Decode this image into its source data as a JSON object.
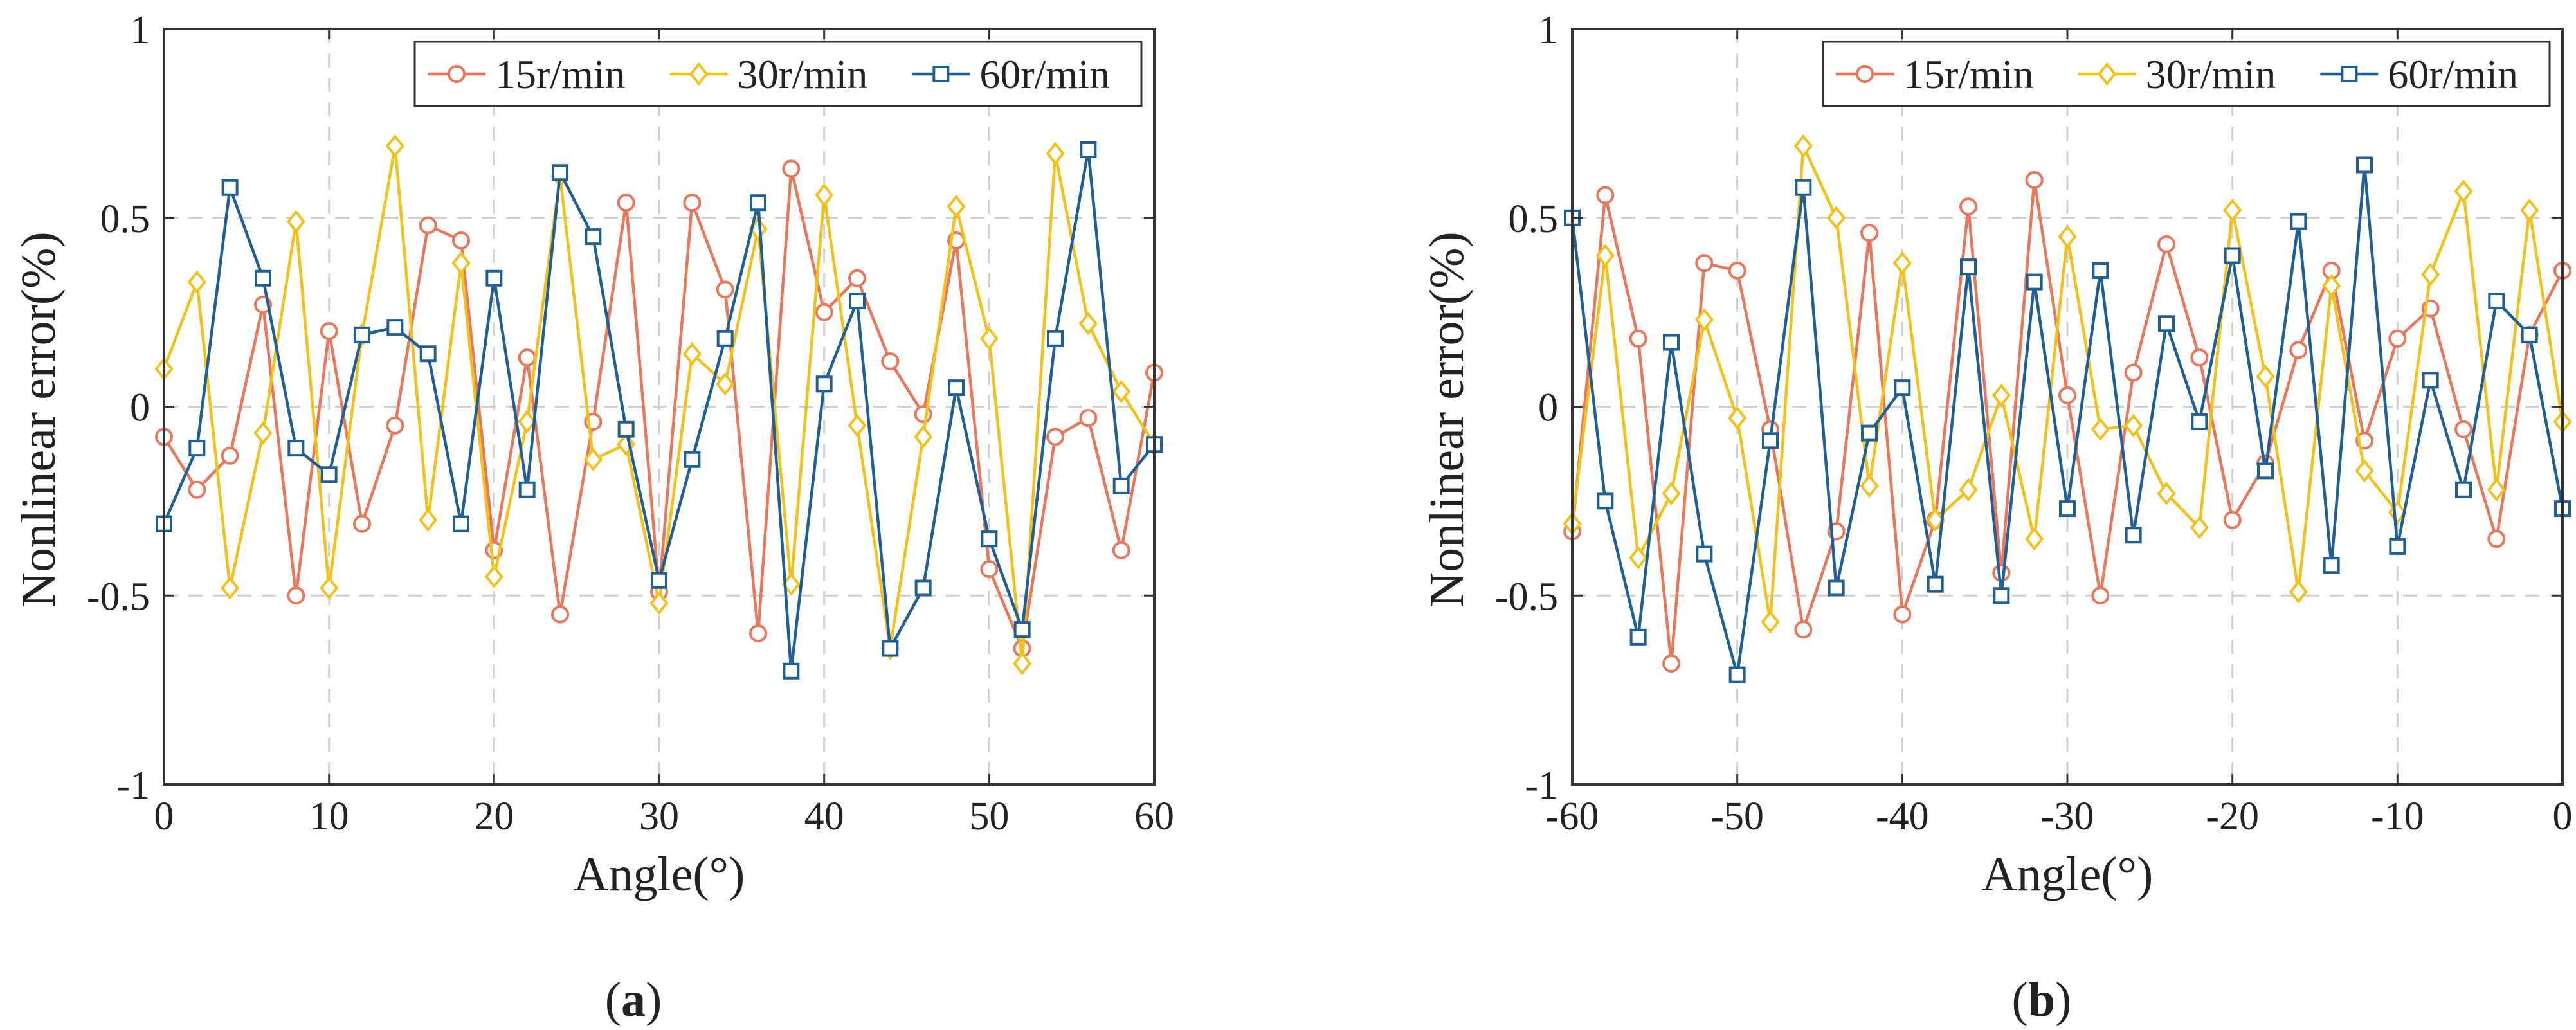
{
  "colors": {
    "s15": "#e8775b",
    "s30": "#f2c21a",
    "s60": "#1f5f96",
    "axis": "#333333",
    "grid": "#cfcfcf"
  },
  "chart_data": [
    {
      "type": "line",
      "panel_label": "(a)",
      "xlabel": "Angle(°)",
      "ylabel": "Nonlinear error(%)",
      "xlim": [
        0,
        60
      ],
      "ylim": [
        -1,
        1
      ],
      "xticks": [
        0,
        10,
        20,
        30,
        40,
        50,
        60
      ],
      "yticks": [
        -1,
        -0.5,
        0,
        0.5,
        1
      ],
      "ytick_labels": [
        "-1",
        "-0.5",
        "0",
        "0.5",
        "1"
      ],
      "grid": true,
      "legend_position": "top-right",
      "x": [
        0,
        2,
        4,
        6,
        8,
        10,
        12,
        14,
        16,
        18,
        20,
        22,
        24,
        26,
        28,
        30,
        32,
        34,
        36,
        38,
        40,
        42,
        44,
        46,
        48,
        50,
        52,
        54,
        56,
        58,
        60
      ],
      "series": [
        {
          "name": "15r/min",
          "marker": "circle",
          "values": [
            -0.08,
            -0.22,
            -0.13,
            0.27,
            -0.5,
            0.2,
            -0.31,
            -0.05,
            0.48,
            0.44,
            -0.38,
            0.13,
            -0.55,
            -0.04,
            0.54,
            -0.49,
            0.54,
            0.31,
            -0.6,
            0.63,
            0.25,
            0.34,
            0.12,
            -0.02,
            0.44,
            -0.43,
            -0.64,
            -0.08,
            -0.03,
            -0.38,
            0.09
          ]
        },
        {
          "name": "30r/min",
          "marker": "diamond",
          "values": [
            0.1,
            0.33,
            -0.48,
            -0.07,
            0.49,
            -0.48,
            0.19,
            0.69,
            -0.3,
            0.38,
            -0.45,
            -0.04,
            0.61,
            -0.14,
            -0.1,
            -0.52,
            0.14,
            0.06,
            0.47,
            -0.47,
            0.56,
            -0.05,
            -0.64,
            -0.08,
            0.53,
            0.18,
            -0.68,
            0.67,
            0.22,
            0.04,
            -0.1
          ]
        },
        {
          "name": "60r/min",
          "marker": "square",
          "values": [
            -0.31,
            -0.11,
            0.58,
            0.34,
            -0.11,
            -0.18,
            0.19,
            0.21,
            0.14,
            -0.31,
            0.34,
            -0.22,
            0.62,
            0.45,
            -0.06,
            -0.46,
            -0.14,
            0.18,
            0.54,
            -0.7,
            0.06,
            0.28,
            -0.64,
            -0.48,
            0.05,
            -0.35,
            -0.59,
            0.18,
            0.68,
            -0.21,
            -0.1
          ]
        }
      ]
    },
    {
      "type": "line",
      "panel_label": "(b)",
      "xlabel": "Angle(°)",
      "ylabel": "Nonlinear error(%)",
      "xlim": [
        -60,
        0
      ],
      "ylim": [
        -1,
        1
      ],
      "xticks": [
        -60,
        -50,
        -40,
        -30,
        -20,
        -10,
        0
      ],
      "yticks": [
        -1,
        -0.5,
        0,
        0.5,
        1
      ],
      "ytick_labels": [
        "-1",
        "-0.5",
        "0",
        "0.5",
        "1"
      ],
      "grid": true,
      "legend_position": "top-right",
      "x": [
        -60,
        -58,
        -56,
        -54,
        -52,
        -50,
        -48,
        -46,
        -44,
        -42,
        -40,
        -38,
        -36,
        -34,
        -32,
        -30,
        -28,
        -26,
        -24,
        -22,
        -20,
        -18,
        -16,
        -14,
        -12,
        -10,
        -8,
        -6,
        -4,
        -2,
        0
      ],
      "series": [
        {
          "name": "15r/min",
          "marker": "circle",
          "values": [
            -0.33,
            0.56,
            0.18,
            -0.68,
            0.38,
            0.36,
            -0.06,
            -0.59,
            -0.33,
            0.46,
            -0.55,
            -0.3,
            0.53,
            -0.44,
            0.6,
            0.03,
            -0.5,
            0.09,
            0.43,
            0.13,
            -0.3,
            -0.15,
            0.15,
            0.36,
            -0.09,
            0.18,
            0.26,
            -0.06,
            -0.35,
            0.19,
            0.36
          ]
        },
        {
          "name": "30r/min",
          "marker": "diamond",
          "values": [
            -0.31,
            0.4,
            -0.4,
            -0.23,
            0.23,
            -0.03,
            -0.57,
            0.69,
            0.5,
            -0.21,
            0.38,
            -0.3,
            -0.22,
            0.03,
            -0.35,
            0.45,
            -0.06,
            -0.05,
            -0.23,
            -0.32,
            0.52,
            0.08,
            -0.49,
            0.32,
            -0.17,
            -0.28,
            0.35,
            0.57,
            -0.22,
            0.52,
            -0.04
          ]
        },
        {
          "name": "60r/min",
          "marker": "square",
          "values": [
            0.5,
            -0.25,
            -0.61,
            0.17,
            -0.39,
            -0.71,
            -0.09,
            0.58,
            -0.48,
            -0.07,
            0.05,
            -0.47,
            0.37,
            -0.5,
            0.33,
            -0.27,
            0.36,
            -0.34,
            0.22,
            -0.04,
            0.4,
            -0.17,
            0.49,
            -0.42,
            0.64,
            -0.37,
            0.07,
            -0.22,
            0.28,
            0.19,
            -0.27
          ]
        }
      ]
    }
  ]
}
